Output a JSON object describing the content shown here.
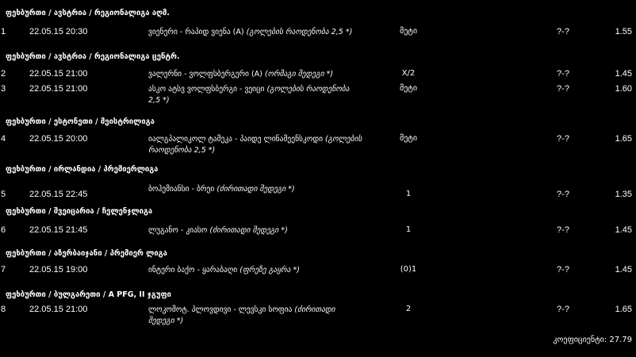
{
  "groups": [
    {
      "header": "ფეხბურთი / ავსტრია / რეგიონალიგა აღმ.",
      "bets": [
        {
          "num": "1",
          "date": "22.05.15 20:30",
          "match": "ვიენერი - რაპიდ ვიენა (A)",
          "market": "(გოლების რაოდენობა 2,5 *)",
          "pick": "მეტი",
          "score": "?-?",
          "odds": "1.55"
        }
      ]
    },
    {
      "header": "ფეხბურთი / ავსტრია / რეგიონალიგა ცენტრ.",
      "bets": [
        {
          "num": "2",
          "date": "22.05.15 21:00",
          "match": "ვალერნი - ვოლფსბერგერი (A)",
          "market": "(ორმაგი შედეგი *)",
          "pick": "X/2",
          "score": "?-?",
          "odds": "1.45"
        },
        {
          "num": "3",
          "date": "22.05.15 21:00",
          "match": "ასკო ატსვ ვოლფსბერგი - ვეიცი",
          "market": "(გოლების რაოდენობა 2,5 *)",
          "pick": "მეტი",
          "score": "?-?",
          "odds": "1.60"
        }
      ]
    },
    {
      "header": "ფეხბურთი / ესტონეთი / მეისტრილიგა",
      "bets": [
        {
          "num": "4",
          "date": "22.05.15 20:00",
          "match": "იალგპალიკოლ ტამეკა - პაიდე ლინამეენსკოდი",
          "market": "(გოლების რაოდენობა 2,5 *)",
          "pick": "მეტი",
          "score": "?-?",
          "odds": "1.65"
        }
      ]
    },
    {
      "header": "ფეხბურთი / ირლანდია / პრემიერლიგა",
      "bets": [
        {
          "num": "5",
          "date": "22.05.15 22:45",
          "match": "ბოჰემიანსი - ბრეი",
          "market": "(ძირითადი შედეგი *)",
          "pick": "1",
          "score": "?-?",
          "odds": "1.35"
        }
      ]
    },
    {
      "header": "ფეხბურთი / შვეიცარია / ჩელენჯლიგა",
      "bets": [
        {
          "num": "6",
          "date": "22.05.15 21:45",
          "match": "ლუგანო - კიასო",
          "market": "(ძირითადი შედეგი *)",
          "pick": "1",
          "score": "?-?",
          "odds": "1.45"
        }
      ]
    },
    {
      "header": "ფეხბურთი / აზერბაიჯანი / პრემიერ ლიგა",
      "bets": [
        {
          "num": "7",
          "date": "22.05.15 19:00",
          "match": "ინტერი ბაქო - ყარაბაღი",
          "market": "(ფრეზე გაყრა *)",
          "pick": "(0)1",
          "score": "?-?",
          "odds": "1.45"
        }
      ]
    },
    {
      "header": "ფეხბურთი / ბულგარეთი / A PFG, II ჯგუფი",
      "bets": [
        {
          "num": "8",
          "date": "22.05.15 21:00",
          "match": "ლოკომოტ. პლოვდივი - ლევსკი სოფია",
          "market": "(ძირითადი შედეგი *)",
          "pick": "2",
          "score": "?-?",
          "odds": "1.65"
        }
      ]
    }
  ],
  "total": {
    "label": "კოეფიციენტი:",
    "value": "27.79"
  },
  "colors": {
    "background": "#000000",
    "text": "#ffffff"
  }
}
